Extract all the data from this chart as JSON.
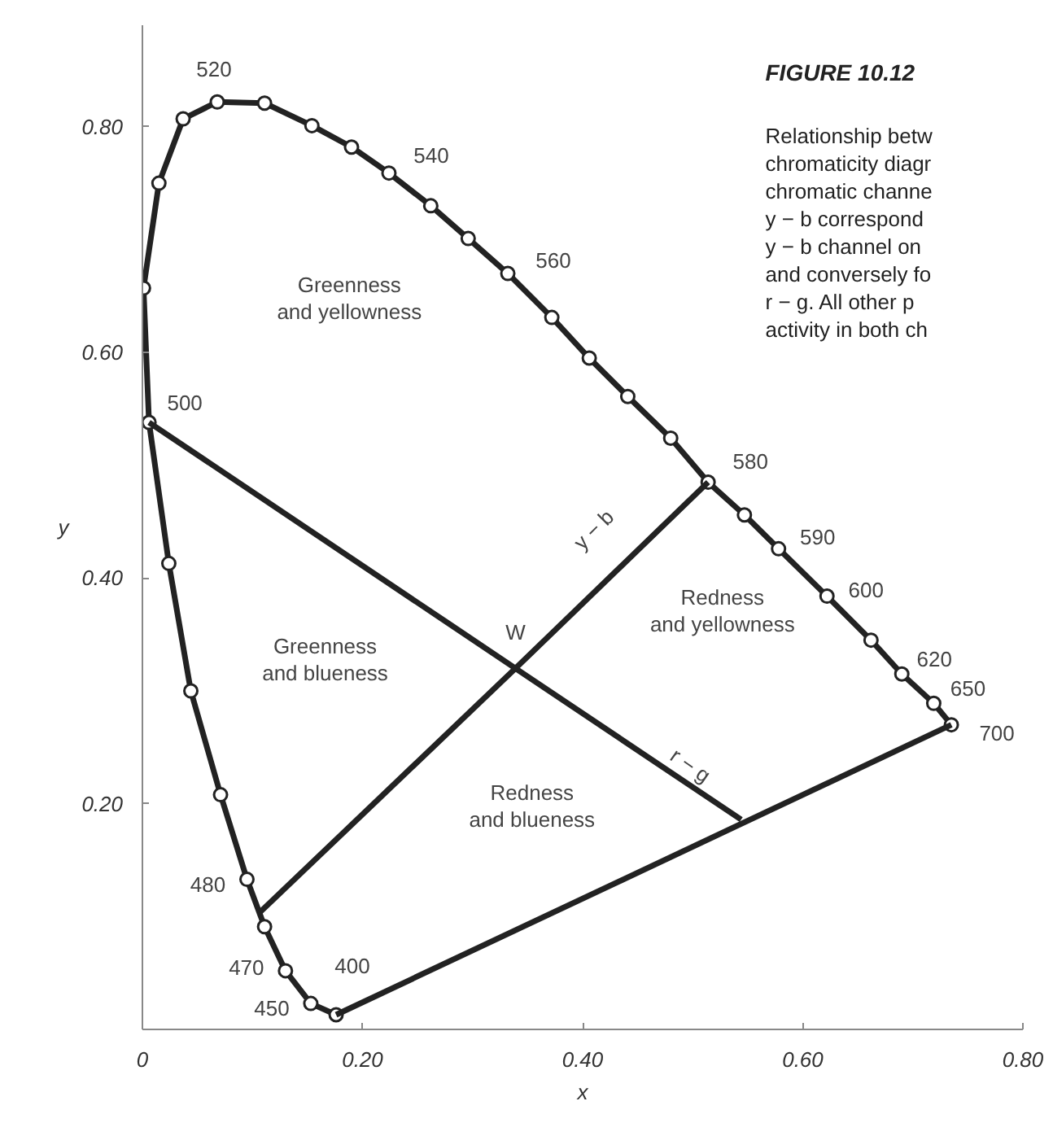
{
  "chart_data": {
    "type": "line",
    "title": "FIGURE 10.12",
    "subtitle": "Relationship betw\nchromaticity diagr\nchromatic channe\ny − b correspond\ny − b channel on\nand conversely fo\nr − g. All other p\nactivity in both ch",
    "xlabel": "x",
    "ylabel": "y",
    "xlim": [
      0,
      0.8
    ],
    "ylim": [
      0,
      0.89
    ],
    "xticks": [
      {
        "value": 0,
        "label": "0"
      },
      {
        "value": 0.2,
        "label": "0.20"
      },
      {
        "value": 0.4,
        "label": "0.40"
      },
      {
        "value": 0.6,
        "label": "0.60"
      },
      {
        "value": 0.8,
        "label": "0.80"
      }
    ],
    "yticks": [
      {
        "value": 0.2,
        "label": "0.20"
      },
      {
        "value": 0.4,
        "label": "0.40"
      },
      {
        "value": 0.6,
        "label": "0.60"
      },
      {
        "value": 0.8,
        "label": "0.80"
      }
    ],
    "grid": false,
    "series": [
      {
        "marker": "circle",
        "color": "#222222",
        "x": [
          0.176,
          0.153,
          0.13,
          0.111,
          0.095,
          0.071,
          0.044,
          0.024,
          0.006,
          0.001,
          0.015,
          0.037,
          0.068,
          0.111,
          0.154,
          0.19,
          0.224,
          0.262,
          0.296,
          0.332,
          0.372,
          0.406,
          0.441,
          0.48,
          0.514,
          0.547,
          0.578,
          0.622,
          0.662,
          0.69,
          0.719,
          0.735
        ],
        "values": [
          0.013,
          0.023,
          0.052,
          0.091,
          0.133,
          0.208,
          0.3,
          0.413,
          0.538,
          0.657,
          0.75,
          0.807,
          0.822,
          0.821,
          0.801,
          0.782,
          0.759,
          0.73,
          0.701,
          0.67,
          0.631,
          0.595,
          0.561,
          0.524,
          0.485,
          0.456,
          0.426,
          0.384,
          0.345,
          0.315,
          0.289,
          0.27
        ]
      },
      {
        "marker": "none",
        "color": "#222222",
        "x": [
          0.176,
          0.735
        ],
        "values": [
          0.013,
          0.27
        ]
      },
      {
        "marker": "none",
        "color": "#222222",
        "x": [
          0.006,
          0.339,
          0.544
        ],
        "values": [
          0.538,
          0.32,
          0.186
        ]
      },
      {
        "marker": "none",
        "color": "#222222",
        "x": [
          0.514,
          0.339,
          0.107
        ],
        "values": [
          0.485,
          0.32,
          0.104
        ]
      }
    ],
    "annotations": [
      {
        "text": "400",
        "x": 0.176,
        "y": 0.013
      },
      {
        "text": "450",
        "x": 0.153,
        "y": 0.023
      },
      {
        "text": "470",
        "x": 0.13,
        "y": 0.052
      },
      {
        "text": "480",
        "x": 0.095,
        "y": 0.133
      },
      {
        "text": "500",
        "x": 0.006,
        "y": 0.538
      },
      {
        "text": "520",
        "x": 0.068,
        "y": 0.822
      },
      {
        "text": "540",
        "x": 0.224,
        "y": 0.759
      },
      {
        "text": "560",
        "x": 0.332,
        "y": 0.67
      },
      {
        "text": "580",
        "x": 0.514,
        "y": 0.485
      },
      {
        "text": "590",
        "x": 0.578,
        "y": 0.426
      },
      {
        "text": "600",
        "x": 0.622,
        "y": 0.384
      },
      {
        "text": "620",
        "x": 0.69,
        "y": 0.315
      },
      {
        "text": "650",
        "x": 0.719,
        "y": 0.289
      },
      {
        "text": "700",
        "x": 0.735,
        "y": 0.27
      },
      {
        "text": "W",
        "x": 0.339,
        "y": 0.32
      },
      "y − b",
      "r − g",
      "Greenness\nand yellowness",
      "Greenness\nand blueness",
      "Redness\nand yellowness",
      "Redness\nand blueness"
    ]
  }
}
